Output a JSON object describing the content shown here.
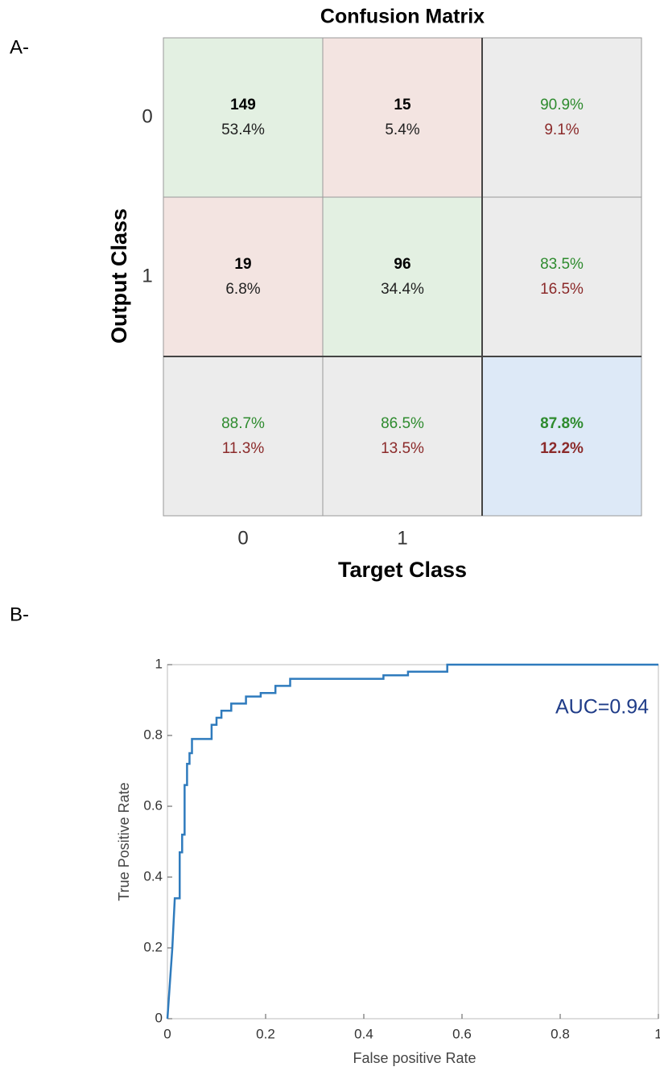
{
  "chart_data": [
    {
      "type": "confusion_matrix",
      "panel_label": "A-",
      "title": "Confusion Matrix",
      "xlabel": "Target Class",
      "ylabel": "Output Class",
      "categories": [
        "0",
        "1"
      ],
      "counts": [
        [
          149,
          15
        ],
        [
          19,
          96
        ]
      ],
      "percents": [
        [
          53.4,
          5.4
        ],
        [
          6.8,
          34.4
        ]
      ],
      "percent_labels": [
        [
          "53.4%",
          "5.4%"
        ],
        [
          "6.8%",
          "34.4%"
        ]
      ],
      "row_correct": [
        90.9,
        83.5
      ],
      "row_correct_labels": [
        "90.9%",
        "83.5%"
      ],
      "row_error": [
        9.1,
        16.5
      ],
      "row_error_labels": [
        "9.1%",
        "16.5%"
      ],
      "col_correct": [
        88.7,
        86.5
      ],
      "col_correct_labels": [
        "88.7%",
        "86.5%"
      ],
      "col_error": [
        11.3,
        13.5
      ],
      "col_error_labels": [
        "11.3%",
        "13.5%"
      ],
      "overall_correct": 87.8,
      "overall_correct_label": "87.8%",
      "overall_error": 12.2,
      "overall_error_label": "12.2%",
      "colors": {
        "correct": "#e3f0e2",
        "error": "#f3e4e1",
        "summary": "#ececec",
        "overall": "#dde9f7",
        "good_text": "#2e8b2e",
        "bad_text": "#8b2a2a"
      }
    },
    {
      "type": "line",
      "panel_label": "B-",
      "xlabel": "False positive Rate",
      "ylabel": "True Positive Rate",
      "annotation": "AUC=0.94",
      "color": "#2f7bbd",
      "annotation_color": "#1f3c88",
      "x": [
        0,
        0.01,
        0.015,
        0.025,
        0.025,
        0.03,
        0.03,
        0.035,
        0.035,
        0.04,
        0.04,
        0.045,
        0.045,
        0.05,
        0.05,
        0.09,
        0.09,
        0.1,
        0.1,
        0.11,
        0.11,
        0.13,
        0.13,
        0.16,
        0.16,
        0.19,
        0.19,
        0.22,
        0.22,
        0.25,
        0.25,
        0.44,
        0.44,
        0.49,
        0.49,
        0.57,
        0.57,
        1
      ],
      "values": [
        0,
        0.2,
        0.34,
        0.34,
        0.47,
        0.47,
        0.52,
        0.52,
        0.66,
        0.66,
        0.72,
        0.72,
        0.75,
        0.75,
        0.79,
        0.79,
        0.83,
        0.83,
        0.85,
        0.85,
        0.87,
        0.87,
        0.89,
        0.89,
        0.91,
        0.91,
        0.92,
        0.92,
        0.94,
        0.94,
        0.96,
        0.96,
        0.97,
        0.97,
        0.98,
        0.98,
        1,
        1
      ],
      "xlim": [
        0,
        1
      ],
      "ylim": [
        0,
        1
      ],
      "xticks": [
        0,
        0.2,
        0.4,
        0.6,
        0.8,
        1
      ],
      "yticks": [
        0,
        0.2,
        0.4,
        0.6,
        0.8,
        1
      ]
    }
  ]
}
